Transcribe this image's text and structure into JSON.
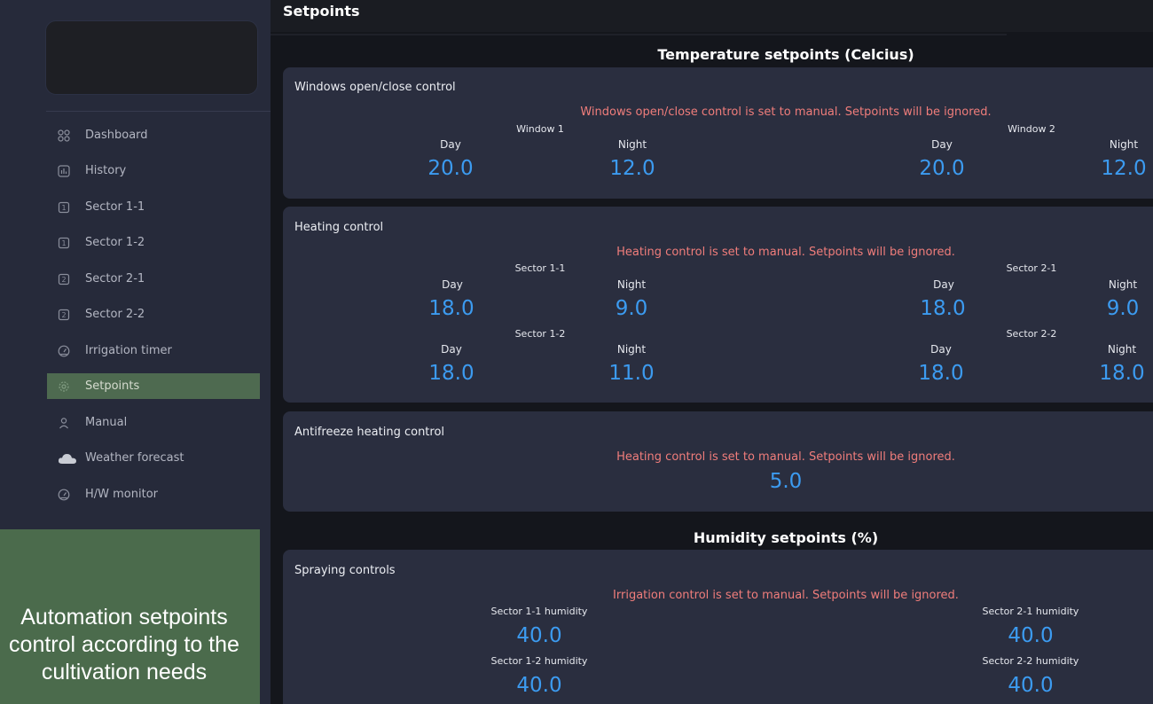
{
  "sidebar": {
    "items": [
      {
        "label": "Dashboard",
        "icon": "dashboard-icon"
      },
      {
        "label": "History",
        "icon": "history-icon"
      },
      {
        "label": "Sector 1-1",
        "icon": "sector-1-icon"
      },
      {
        "label": "Sector 1-2",
        "icon": "sector-1-icon"
      },
      {
        "label": "Sector 2-1",
        "icon": "sector-2-icon"
      },
      {
        "label": "Sector 2-2",
        "icon": "sector-2-icon"
      },
      {
        "label": "Irrigation timer",
        "icon": "gauge-icon"
      },
      {
        "label": "Setpoints",
        "icon": "gear-icon",
        "active": true
      },
      {
        "label": "Manual",
        "icon": "user-icon"
      },
      {
        "label": "Weather forecast",
        "icon": "cloud-icon"
      },
      {
        "label": "H/W monitor",
        "icon": "gauge-icon"
      }
    ]
  },
  "caption": {
    "line1": "Automation setpoints",
    "line2": "control according to the",
    "line3": "cultivation needs"
  },
  "header": {
    "title": "Setpoints"
  },
  "temperature": {
    "title": "Temperature setpoints (Celcius)",
    "windows": {
      "title": "Windows open/close control",
      "warning": "Windows open/close control is set to manual. Setpoints will be ignored.",
      "w1": {
        "name": "Window 1",
        "day_label": "Day",
        "night_label": "Night",
        "day": "20.0",
        "night": "12.0"
      },
      "w2": {
        "name": "Window 2",
        "day_label": "Day",
        "night_label": "Night",
        "day": "20.0",
        "night": "12.0"
      }
    },
    "heating": {
      "title": "Heating control",
      "warning": "Heating control is set to manual. Setpoints will be ignored.",
      "s11": {
        "name": "Sector 1-1",
        "day_label": "Day",
        "night_label": "Night",
        "day": "18.0",
        "night": "9.0"
      },
      "s21": {
        "name": "Sector 2-1",
        "day_label": "Day",
        "night_label": "Night",
        "day": "18.0",
        "night": "9.0"
      },
      "s12": {
        "name": "Sector 1-2",
        "day_label": "Day",
        "night_label": "Night",
        "day": "18.0",
        "night": "11.0"
      },
      "s22": {
        "name": "Sector 2-2",
        "day_label": "Day",
        "night_label": "Night",
        "day": "18.0",
        "night": "18.0"
      }
    },
    "antifreeze": {
      "title": "Antifreeze heating control",
      "warning": "Heating control is set to manual. Setpoints will be ignored.",
      "value": "5.0"
    }
  },
  "humidity": {
    "title": "Humidity setpoints (%)",
    "spraying": {
      "title": "Spraying controls",
      "warning": "Irrigation control is set to manual. Setpoints will be ignored.",
      "s11": {
        "name": "Sector 1-1 humidity",
        "value": "40.0"
      },
      "s21": {
        "name": "Sector 2-1 humidity",
        "value": "40.0"
      },
      "s12": {
        "name": "Sector 1-2 humidity",
        "value": "40.0"
      },
      "s22": {
        "name": "Sector 2-2 humidity",
        "value": "40.0"
      }
    }
  },
  "colors": {
    "accent_value": "#3c9bf0",
    "warning": "#f07d7b",
    "active_nav": "#4e6a50"
  }
}
